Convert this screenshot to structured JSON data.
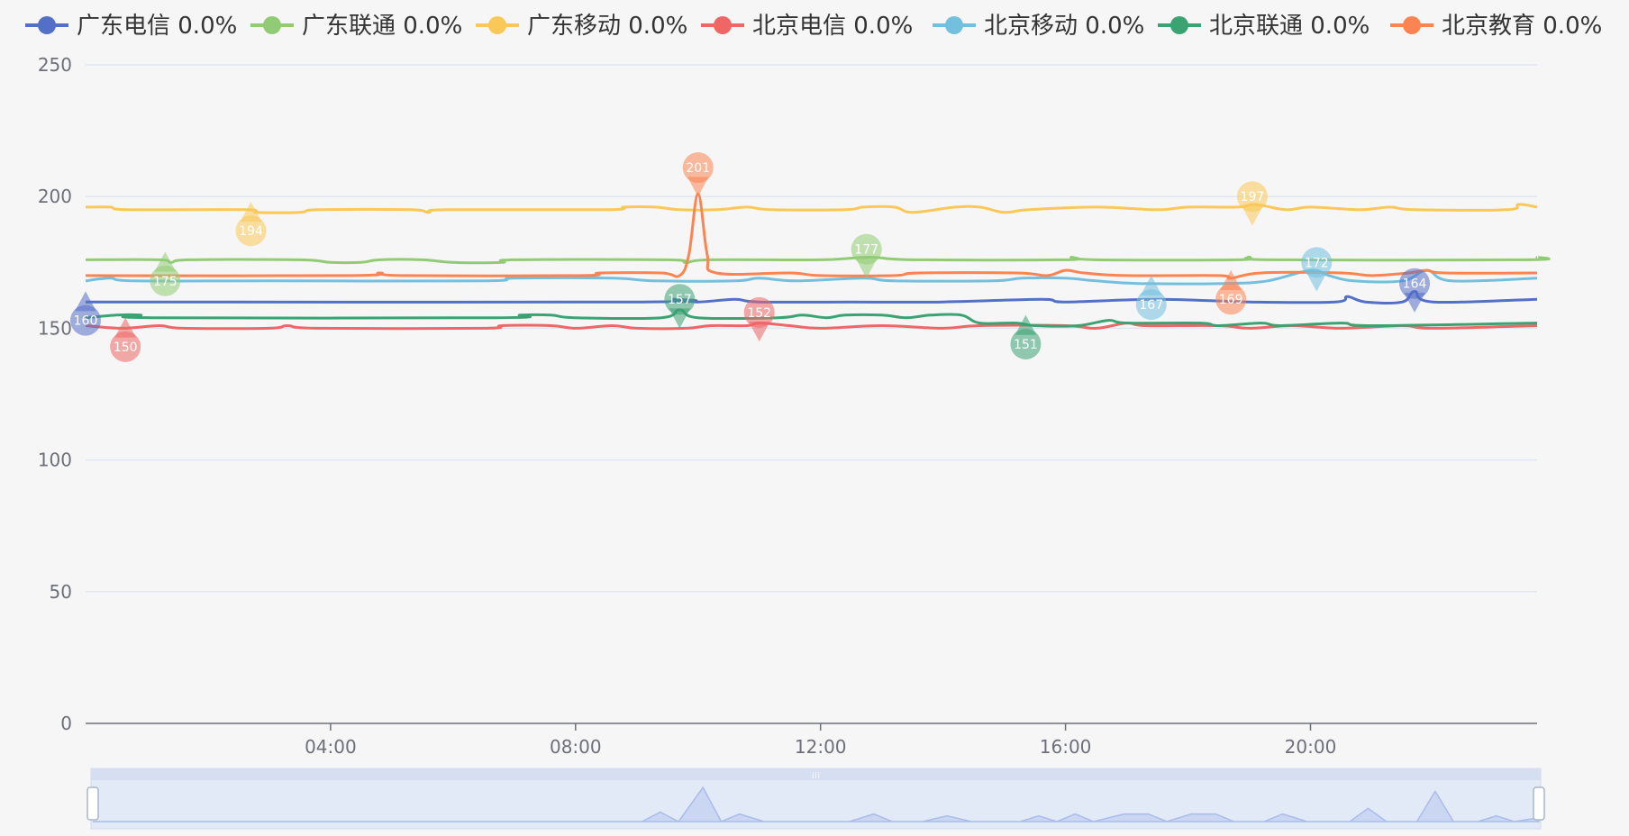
{
  "chart_data": {
    "type": "line",
    "legend_position": "top",
    "grid": true,
    "y_ticks": [
      "250",
      "200",
      "150",
      "100",
      "50",
      "0"
    ],
    "ylim": [
      0,
      250
    ],
    "x_ticks": [
      {
        "label": "04:00",
        "x": 4
      },
      {
        "label": "08:00",
        "x": 8
      },
      {
        "label": "12:00",
        "x": 12
      },
      {
        "label": "16:00",
        "x": 16
      },
      {
        "label": "20:00",
        "x": 20
      }
    ],
    "xlim": [
      0,
      23.7
    ],
    "series": [
      {
        "name": "广东电信",
        "legend_label": "广东电信 0.0%",
        "color": "#5470c6",
        "base": 160,
        "points": [
          [
            0,
            160
          ],
          [
            9.1,
            160
          ],
          [
            9.6,
            161
          ],
          [
            10,
            160
          ],
          [
            10.6,
            161
          ],
          [
            11,
            160
          ],
          [
            12.5,
            160
          ],
          [
            14,
            160
          ],
          [
            15.6,
            161
          ],
          [
            16,
            160
          ],
          [
            17.5,
            161
          ],
          [
            19,
            160
          ],
          [
            20.4,
            160
          ],
          [
            20.6,
            162
          ],
          [
            20.9,
            160
          ],
          [
            21.5,
            160
          ],
          [
            21.7,
            164
          ],
          [
            22,
            160
          ],
          [
            23.7,
            161
          ]
        ],
        "marker": {
          "x": 0,
          "y": 153,
          "label": "160"
        }
      },
      {
        "name": "广东联通",
        "legend_label": "广东联通 0.0%",
        "color": "#91cc75",
        "base": 176,
        "points": [
          [
            0,
            176
          ],
          [
            1.2,
            176
          ],
          [
            1.4,
            175
          ],
          [
            1.7,
            176
          ],
          [
            3.5,
            176
          ],
          [
            4,
            175
          ],
          [
            4.5,
            175
          ],
          [
            4.8,
            176
          ],
          [
            5.5,
            176
          ],
          [
            6,
            175
          ],
          [
            6.8,
            175
          ],
          [
            7,
            176
          ],
          [
            9.5,
            176
          ],
          [
            9.8,
            175
          ],
          [
            10.2,
            176
          ],
          [
            12,
            176
          ],
          [
            12.8,
            177
          ],
          [
            13.5,
            176
          ],
          [
            16,
            176
          ],
          [
            16.1,
            177
          ],
          [
            16.5,
            176
          ],
          [
            18.8,
            176
          ],
          [
            19,
            177
          ],
          [
            19.4,
            176
          ],
          [
            23.5,
            176
          ],
          [
            23.7,
            177
          ]
        ],
        "marker": {
          "x": 1.3,
          "y": 168,
          "label": "175"
        }
      },
      {
        "name": "广东移动",
        "legend_label": "广东移动 0.0%",
        "color": "#fac858",
        "base": 195,
        "points": [
          [
            0,
            196
          ],
          [
            0.4,
            196
          ],
          [
            0.7,
            195
          ],
          [
            2.6,
            195
          ],
          [
            2.8,
            194
          ],
          [
            3.5,
            194
          ],
          [
            3.8,
            195
          ],
          [
            5.3,
            195
          ],
          [
            5.6,
            194
          ],
          [
            5.9,
            195
          ],
          [
            8.5,
            195
          ],
          [
            8.8,
            196
          ],
          [
            9.3,
            196
          ],
          [
            9.7,
            195
          ],
          [
            10.3,
            195
          ],
          [
            10.8,
            196
          ],
          [
            11.2,
            195
          ],
          [
            12.4,
            195
          ],
          [
            12.7,
            196
          ],
          [
            13.2,
            196
          ],
          [
            13.5,
            194
          ],
          [
            14.2,
            196
          ],
          [
            14.6,
            196
          ],
          [
            15,
            194
          ],
          [
            15.4,
            195
          ],
          [
            16.5,
            196
          ],
          [
            17.5,
            195
          ],
          [
            18,
            196
          ],
          [
            18.8,
            196
          ],
          [
            19.1,
            197
          ],
          [
            19.6,
            195
          ],
          [
            20,
            196
          ],
          [
            20.8,
            195
          ],
          [
            21.3,
            196
          ],
          [
            21.7,
            195
          ],
          [
            23.2,
            195
          ],
          [
            23.4,
            197
          ],
          [
            23.7,
            196
          ]
        ],
        "marker": {
          "x": 2.7,
          "y": 187,
          "label": "194"
        }
      },
      {
        "name": "北京电信",
        "legend_label": "北京电信  0.0%",
        "color": "#ee6666",
        "base": 150,
        "points": [
          [
            0,
            151
          ],
          [
            0.6,
            150
          ],
          [
            1.2,
            151
          ],
          [
            1.6,
            150
          ],
          [
            3,
            150
          ],
          [
            3.3,
            151
          ],
          [
            3.8,
            150
          ],
          [
            6.5,
            150
          ],
          [
            6.8,
            151
          ],
          [
            7.6,
            151
          ],
          [
            8,
            150
          ],
          [
            8.6,
            151
          ],
          [
            9,
            150
          ],
          [
            9.8,
            150
          ],
          [
            10.2,
            151
          ],
          [
            10.8,
            151
          ],
          [
            11,
            152
          ],
          [
            11.5,
            151
          ],
          [
            12,
            150
          ],
          [
            13,
            151
          ],
          [
            14,
            150
          ],
          [
            14.6,
            151
          ],
          [
            16,
            151
          ],
          [
            16.5,
            150
          ],
          [
            17,
            152
          ],
          [
            17.3,
            151
          ],
          [
            18.5,
            151
          ],
          [
            19,
            150
          ],
          [
            19.7,
            151
          ],
          [
            20.5,
            150
          ],
          [
            21.5,
            151
          ],
          [
            22,
            150
          ],
          [
            23.7,
            151
          ]
        ],
        "marker": {
          "x": 0.65,
          "y": 143,
          "label": "150"
        }
      },
      {
        "name": "北京移动",
        "legend_label": "北京移动 0.0%",
        "color": "#73c0de",
        "base": 168,
        "points": [
          [
            0,
            168
          ],
          [
            0.4,
            169
          ],
          [
            0.8,
            168
          ],
          [
            3,
            168
          ],
          [
            6.5,
            168
          ],
          [
            7,
            169
          ],
          [
            8.6,
            169
          ],
          [
            9.3,
            168
          ],
          [
            10.6,
            168
          ],
          [
            11,
            169
          ],
          [
            11.6,
            168
          ],
          [
            12.7,
            169
          ],
          [
            13.2,
            168
          ],
          [
            14.8,
            168
          ],
          [
            15.3,
            169
          ],
          [
            16,
            169
          ],
          [
            16.5,
            168
          ],
          [
            17.2,
            167
          ],
          [
            18.6,
            167
          ],
          [
            19.3,
            168
          ],
          [
            20,
            172
          ],
          [
            20.3,
            170
          ],
          [
            20.7,
            168
          ],
          [
            21.5,
            168
          ],
          [
            21.9,
            172
          ],
          [
            22.3,
            168
          ],
          [
            23.7,
            169
          ]
        ],
        "marker": {
          "x": 17.4,
          "y": 159,
          "label": "167"
        }
      },
      {
        "name": "北京联通",
        "legend_label": "北京联通  0.0%",
        "color": "#3ba272",
        "base": 154,
        "points": [
          [
            0,
            154
          ],
          [
            0.5,
            155
          ],
          [
            0.9,
            155
          ],
          [
            1.1,
            154
          ],
          [
            6.7,
            154
          ],
          [
            7.1,
            155
          ],
          [
            7.6,
            155
          ],
          [
            8,
            154
          ],
          [
            9.4,
            154
          ],
          [
            9.7,
            157
          ],
          [
            10,
            154
          ],
          [
            11.3,
            154
          ],
          [
            11.7,
            155
          ],
          [
            12.1,
            154
          ],
          [
            12.4,
            155
          ],
          [
            13,
            155
          ],
          [
            13.4,
            154
          ],
          [
            13.8,
            155
          ],
          [
            14.3,
            155
          ],
          [
            14.6,
            152
          ],
          [
            15.2,
            152
          ],
          [
            15.5,
            151
          ],
          [
            16.2,
            151
          ],
          [
            16.7,
            153
          ],
          [
            17,
            152
          ],
          [
            18.2,
            152
          ],
          [
            18.5,
            151
          ],
          [
            19.2,
            152
          ],
          [
            19.5,
            151
          ],
          [
            20.5,
            152
          ],
          [
            21,
            151
          ],
          [
            23.7,
            152
          ]
        ],
        "marker": {
          "x": 15.35,
          "y": 144,
          "label": "151"
        }
      },
      {
        "name": "北京教育",
        "legend_label": "北京教育 0.0%",
        "color": "#fc8452",
        "base": 170,
        "points": [
          [
            0,
            170
          ],
          [
            4.3,
            170
          ],
          [
            4.8,
            171
          ],
          [
            5.2,
            170
          ],
          [
            8.1,
            170
          ],
          [
            8.4,
            171
          ],
          [
            9.4,
            171
          ],
          [
            9.7,
            170
          ],
          [
            9.85,
            178
          ],
          [
            10.0,
            201
          ],
          [
            10.15,
            178
          ],
          [
            10.3,
            171
          ],
          [
            11.5,
            171
          ],
          [
            12,
            170
          ],
          [
            13.2,
            170
          ],
          [
            13.6,
            171
          ],
          [
            15.2,
            171
          ],
          [
            15.7,
            170
          ],
          [
            16,
            172
          ],
          [
            16.3,
            171
          ],
          [
            17,
            170
          ],
          [
            18.5,
            170
          ],
          [
            18.7,
            169
          ],
          [
            19.2,
            171
          ],
          [
            20.5,
            171
          ],
          [
            21,
            170
          ],
          [
            21.6,
            171
          ],
          [
            21.9,
            172
          ],
          [
            22.2,
            171
          ],
          [
            23.7,
            171
          ]
        ],
        "marker": {
          "x": 10.0,
          "y": 211,
          "label": "201"
        },
        "marker2": {
          "x": 18.7,
          "y": 161,
          "label": "169"
        }
      }
    ],
    "extra_markers": [
      {
        "series": "广东联通",
        "x": 12.75,
        "y": 180,
        "label": "177"
      },
      {
        "series": "广东移动",
        "x": 19.05,
        "y": 200,
        "label": "197"
      },
      {
        "series": "北京电信",
        "x": 11.0,
        "y": 156,
        "label": "152"
      },
      {
        "series": "北京移动",
        "x": 20.1,
        "y": 175,
        "label": "172"
      },
      {
        "series": "北京联通",
        "x": 9.7,
        "y": 161,
        "label": "157"
      },
      {
        "series": "广东电信",
        "x": 21.7,
        "y": 167,
        "label": "164"
      }
    ],
    "zoom": {
      "handle_label": "⁞⁞⁞"
    }
  }
}
